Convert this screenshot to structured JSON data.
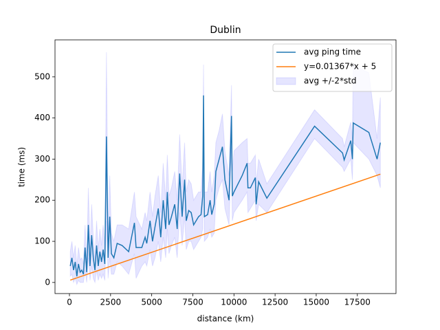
{
  "chart_data": {
    "type": "line",
    "title": "Dublin",
    "xlabel": "distance (km)",
    "ylabel": "time (ms)",
    "x": [
      50,
      150,
      250,
      350,
      450,
      550,
      650,
      750,
      850,
      950,
      1050,
      1150,
      1250,
      1350,
      1450,
      1550,
      1650,
      1750,
      1850,
      1950,
      2050,
      2150,
      2250,
      2350,
      2450,
      2550,
      2700,
      2900,
      3200,
      3600,
      3950,
      4050,
      4400,
      4600,
      4700,
      4900,
      5050,
      5200,
      5400,
      5550,
      5700,
      5850,
      5950,
      6050,
      6200,
      6400,
      6550,
      6700,
      6850,
      7000,
      7100,
      7250,
      7400,
      7550,
      7700,
      7850,
      8000,
      8100,
      8150,
      8200,
      8400,
      8550,
      8650,
      8800,
      8900,
      9100,
      9300,
      9450,
      9700,
      9850,
      9900,
      10000,
      10500,
      10800,
      10850,
      11000,
      11300,
      11350,
      11500,
      12000,
      14900,
      16600,
      16700,
      17100,
      17200,
      17250,
      18200,
      18700,
      18900
    ],
    "series": [
      {
        "name": "avg ping time",
        "color": "#1f77b4",
        "values": [
          40,
          60,
          30,
          50,
          15,
          45,
          25,
          30,
          20,
          85,
          25,
          140,
          40,
          115,
          60,
          30,
          90,
          40,
          75,
          50,
          80,
          45,
          355,
          60,
          160,
          70,
          60,
          95,
          90,
          75,
          145,
          85,
          85,
          110,
          95,
          150,
          100,
          135,
          180,
          110,
          200,
          130,
          220,
          140,
          160,
          190,
          130,
          265,
          160,
          250,
          150,
          175,
          170,
          140,
          150,
          160,
          165,
          210,
          455,
          160,
          165,
          200,
          165,
          190,
          270,
          300,
          330,
          250,
          200,
          405,
          210,
          220,
          260,
          290,
          230,
          230,
          255,
          190,
          245,
          205,
          380,
          315,
          298,
          345,
          300,
          388,
          365,
          300,
          340
        ]
      },
      {
        "name": "y=0.01367*x + 5",
        "color": "#ff7f0e",
        "x": [
          50,
          18900
        ],
        "values": [
          5.7,
          263.4
        ]
      },
      {
        "name": "avg +/-2*std",
        "color": "#0000ff",
        "alpha": 0.1,
        "lower": [
          15,
          20,
          0,
          10,
          -5,
          5,
          0,
          0,
          0,
          30,
          0,
          60,
          5,
          40,
          10,
          0,
          30,
          5,
          20,
          10,
          20,
          5,
          150,
          10,
          60,
          20,
          20,
          50,
          40,
          20,
          70,
          10,
          40,
          50,
          40,
          80,
          40,
          60,
          100,
          50,
          110,
          60,
          130,
          70,
          90,
          110,
          60,
          170,
          90,
          160,
          80,
          100,
          100,
          80,
          90,
          100,
          110,
          130,
          380,
          100,
          110,
          130,
          110,
          120,
          200,
          230,
          250,
          180,
          140,
          330,
          150,
          170,
          200,
          220,
          170,
          180,
          200,
          150,
          190,
          170,
          350,
          280,
          270,
          300,
          250,
          340,
          300,
          260,
          230
        ],
        "upper": [
          75,
          100,
          60,
          90,
          40,
          85,
          55,
          60,
          45,
          140,
          55,
          230,
          80,
          190,
          110,
          60,
          150,
          80,
          130,
          90,
          140,
          90,
          560,
          110,
          260,
          120,
          100,
          140,
          140,
          130,
          220,
          160,
          130,
          170,
          150,
          220,
          160,
          210,
          260,
          170,
          290,
          200,
          310,
          210,
          230,
          270,
          200,
          360,
          230,
          340,
          220,
          250,
          240,
          200,
          210,
          220,
          220,
          290,
          530,
          220,
          220,
          270,
          220,
          260,
          340,
          370,
          410,
          320,
          260,
          480,
          270,
          320,
          340,
          350,
          290,
          290,
          310,
          240,
          300,
          240,
          420,
          350,
          330,
          390,
          350,
          530,
          510,
          350,
          450
        ]
      }
    ],
    "xlim": [
      -878,
      19850
    ],
    "ylim": [
      -27,
      590
    ],
    "xticks": [
      0,
      2500,
      5000,
      7500,
      10000,
      12500,
      15000,
      17500
    ],
    "yticks": [
      0,
      100,
      200,
      300,
      400,
      500
    ],
    "legend": "upper right"
  }
}
